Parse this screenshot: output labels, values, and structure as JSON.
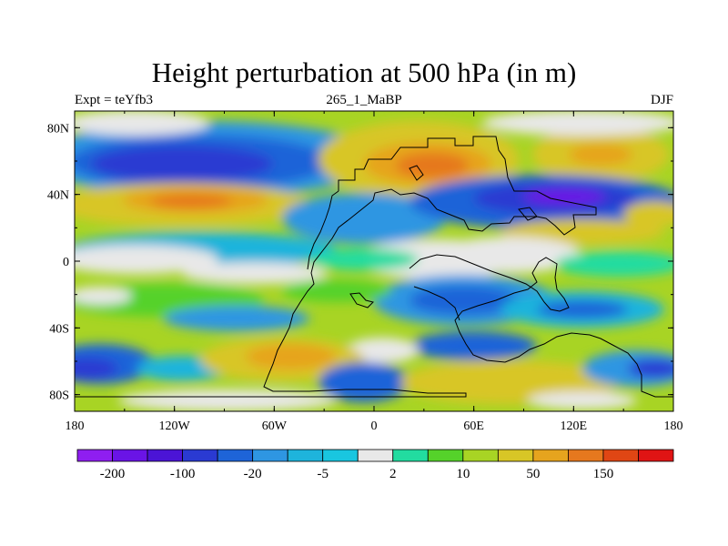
{
  "title": "Height perturbation at 500 hPa (in m)",
  "experiment_label": "Expt = teYfb3",
  "period_label": "265_1_MaBP",
  "season_label": "DJF",
  "map": {
    "lat_ticks": [
      {
        "value": 80,
        "label": "80N"
      },
      {
        "value": 40,
        "label": "40N"
      },
      {
        "value": 0,
        "label": "0"
      },
      {
        "value": -40,
        "label": "40S"
      },
      {
        "value": -80,
        "label": "80S"
      }
    ],
    "lon_ticks": [
      {
        "value": -180,
        "label": "180"
      },
      {
        "value": -120,
        "label": "120W"
      },
      {
        "value": -60,
        "label": "60W"
      },
      {
        "value": 0,
        "label": "0"
      },
      {
        "value": 60,
        "label": "60E"
      },
      {
        "value": 120,
        "label": "120E"
      },
      {
        "value": 180,
        "label": "180"
      }
    ],
    "lon_range": [
      -180,
      180
    ],
    "lat_range": [
      -90,
      90
    ]
  },
  "colorbar": {
    "colors": [
      "#8f1ef0",
      "#6a14e6",
      "#4b14d6",
      "#2a3ad2",
      "#1e64d8",
      "#2e96e2",
      "#1eb4dc",
      "#19c6e0",
      "#e8e8e8",
      "#22dca0",
      "#55d22a",
      "#a8d424",
      "#d8c626",
      "#e6a41e",
      "#e6781e",
      "#e04614",
      "#e01414"
    ],
    "labels": [
      {
        "after_box": 1,
        "text": "-200"
      },
      {
        "after_box": 3,
        "text": "-100"
      },
      {
        "after_box": 5,
        "text": "-20"
      },
      {
        "after_box": 7,
        "text": "-5"
      },
      {
        "after_box": 9,
        "text": "2"
      },
      {
        "after_box": 11,
        "text": "10"
      },
      {
        "after_box": 13,
        "text": "50"
      },
      {
        "after_box": 15,
        "text": "150"
      }
    ]
  }
}
